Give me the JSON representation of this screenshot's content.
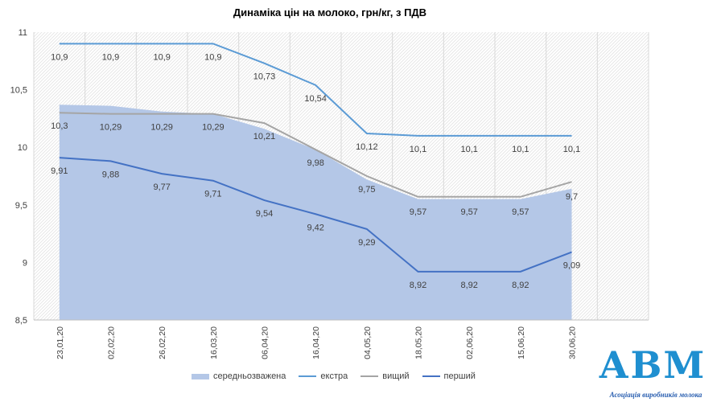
{
  "chart_data": {
    "type": "line",
    "title": "Динаміка цін на молоко, грн/кг, з ПДВ",
    "categories": [
      "23,01,20",
      "02,02,20",
      "26,02,20",
      "16,03,20",
      "06,04,20",
      "16,04,20",
      "04,05,20",
      "18,05,20",
      "02,06,20",
      "15,06,20",
      "30,06,20"
    ],
    "ylim": [
      8.5,
      11
    ],
    "yticks": [
      "8,5",
      "9",
      "9,5",
      "10",
      "10,5",
      "11"
    ],
    "xlabel": "",
    "ylabel": "",
    "grid": "vertical",
    "legend_position": "bottom",
    "series": [
      {
        "name": "середньозважена",
        "kind": "area",
        "color": "#b4c7e7",
        "values": [
          10.37,
          10.36,
          10.31,
          10.29,
          10.16,
          9.98,
          9.72,
          9.55,
          9.55,
          9.55,
          9.64
        ],
        "labels": []
      },
      {
        "name": "екстра",
        "kind": "line",
        "color": "#5b9bd5",
        "values": [
          10.9,
          10.9,
          10.9,
          10.9,
          10.73,
          10.54,
          10.12,
          10.1,
          10.1,
          10.1,
          10.1
        ],
        "labels": [
          "10,9",
          "10,9",
          "10,9",
          "10,9",
          "10,73",
          "10,54",
          "10,12",
          "10,1",
          "10,1",
          "10,1",
          "10,1"
        ]
      },
      {
        "name": "вищий",
        "kind": "line",
        "color": "#a5a5a5",
        "values": [
          10.3,
          10.29,
          10.29,
          10.29,
          10.21,
          9.98,
          9.75,
          9.57,
          9.57,
          9.57,
          9.7
        ],
        "labels": [
          "10,3",
          "10,29",
          "10,29",
          "10,29",
          "10,21",
          "9,98",
          "9,75",
          "9,57",
          "9,57",
          "9,57",
          "9,7"
        ]
      },
      {
        "name": "перший",
        "kind": "line",
        "color": "#4472c4",
        "values": [
          9.91,
          9.88,
          9.77,
          9.71,
          9.54,
          9.42,
          9.29,
          8.92,
          8.92,
          8.92,
          9.09
        ],
        "labels": [
          "9,91",
          "9,88",
          "9,77",
          "9,71",
          "9,54",
          "9,42",
          "9,29",
          "8,92",
          "8,92",
          "8,92",
          "9,09"
        ]
      }
    ]
  },
  "logo": {
    "text": "АВМ",
    "caption": "Асоціація виробників молока",
    "color": "#1f8fd0"
  }
}
